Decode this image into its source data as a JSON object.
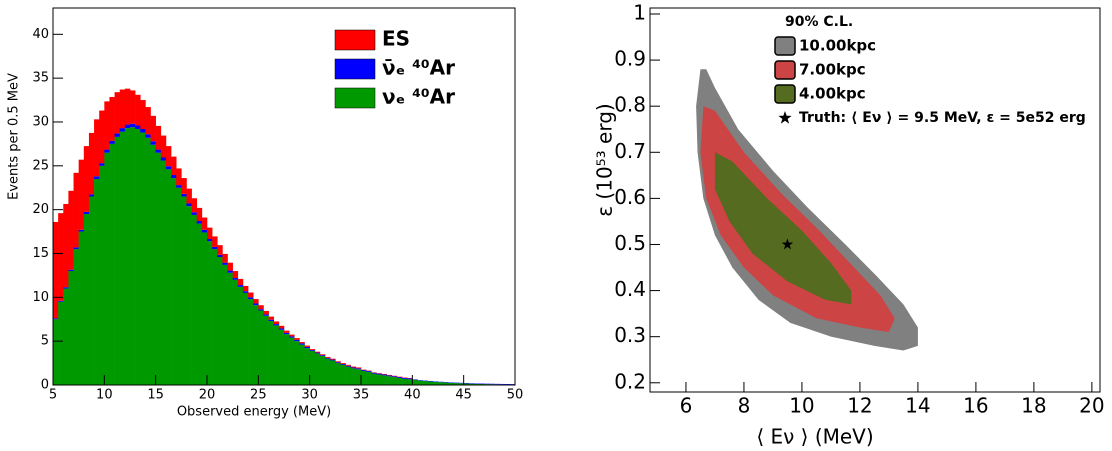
{
  "chart_data": [
    {
      "type": "histogram",
      "xlabel": "Observed energy (MeV)",
      "ylabel": "Events per 0.5 MeV",
      "bins": [
        5,
        5.5,
        6,
        6.5,
        7,
        7.5,
        8,
        8.5,
        9,
        9.5,
        10,
        10.5,
        11,
        11.5,
        12,
        12.5,
        13,
        13.5,
        14,
        14.5,
        15,
        15.5,
        16,
        16.5,
        17,
        17.5,
        18,
        18.5,
        19,
        19.5,
        20,
        20.5,
        21,
        21.5,
        22,
        22.5,
        23,
        23.5,
        24,
        24.5,
        25,
        25.5,
        26,
        26.5,
        27,
        27.5,
        28,
        28.5,
        29,
        29.5,
        30,
        30.5,
        31,
        31.5,
        32,
        32.5,
        33,
        33.5,
        34,
        34.5,
        35,
        35.5,
        36,
        36.5,
        37,
        37.5,
        38,
        38.5,
        39,
        39.5,
        40,
        40.5,
        41,
        41.5,
        42,
        42.5,
        43,
        43.5,
        44,
        44.5,
        45,
        45.5,
        46,
        46.5,
        47,
        47.5,
        48,
        48.5,
        49,
        49.5,
        50
      ],
      "series": [
        {
          "name": "ES",
          "color": "#ff0000",
          "values": [
            11,
            10,
            9.5,
            9,
            8.5,
            8,
            7.5,
            7,
            6.5,
            6,
            5.5,
            5,
            4.7,
            4.4,
            4.1,
            3.8,
            3.5,
            3.3,
            3.1,
            2.9,
            2.7,
            2.5,
            2.3,
            2.1,
            1.9,
            1.8,
            1.7,
            1.6,
            1.5,
            1.4,
            1.3,
            1.2,
            1.1,
            1.0,
            0.9,
            0.8,
            0.7,
            0.6,
            0.55,
            0.5,
            0.45,
            0.4,
            0.35,
            0.3,
            0.3,
            0.25,
            0.2,
            0.2,
            0.15,
            0.15,
            0.1,
            0.1,
            0.1,
            0.1,
            0.1,
            0.1,
            0.1,
            0.1,
            0.1,
            0.1,
            0.05,
            0.05,
            0.05,
            0.05,
            0.05,
            0.05,
            0.05,
            0.05,
            0.05,
            0.05,
            0,
            0,
            0,
            0,
            0,
            0,
            0,
            0,
            0,
            0,
            0,
            0,
            0,
            0,
            0,
            0,
            0,
            0,
            0,
            0
          ]
        },
        {
          "name": "ν̄ₑ ⁴⁰Ar",
          "color": "#0000ff",
          "values": [
            0.1,
            0.1,
            0.15,
            0.15,
            0.2,
            0.2,
            0.25,
            0.25,
            0.3,
            0.3,
            0.35,
            0.35,
            0.4,
            0.4,
            0.4,
            0.4,
            0.4,
            0.4,
            0.4,
            0.4,
            0.35,
            0.35,
            0.35,
            0.35,
            0.3,
            0.3,
            0.3,
            0.3,
            0.3,
            0.3,
            0.25,
            0.25,
            0.25,
            0.25,
            0.25,
            0.2,
            0.2,
            0.2,
            0.2,
            0.2,
            0.15,
            0.15,
            0.15,
            0.15,
            0.15,
            0.15,
            0.15,
            0.15,
            0.15,
            0.15,
            0.1,
            0.1,
            0.1,
            0.1,
            0.1,
            0.1,
            0.1,
            0.1,
            0.1,
            0.1,
            0.1,
            0.1,
            0.1,
            0.1,
            0.1,
            0.1,
            0.1,
            0.1,
            0.1,
            0.1,
            0.05,
            0.05,
            0.05,
            0.05,
            0.05,
            0.05,
            0.05,
            0.05,
            0.05,
            0.05,
            0.05,
            0.05,
            0.05,
            0.05,
            0.05,
            0.05,
            0.05,
            0.05,
            0.05,
            0.05
          ]
        },
        {
          "name": "νₑ ⁴⁰Ar",
          "color": "#009900",
          "values": [
            7.5,
            9.5,
            11,
            13,
            15.5,
            17.5,
            19.5,
            21.5,
            23.5,
            25,
            26.5,
            27.5,
            28.3,
            28.9,
            29.3,
            29.4,
            29.2,
            28.8,
            28.2,
            27.4,
            26.5,
            25.6,
            24.6,
            23.6,
            22.5,
            21.5,
            20.4,
            19.4,
            18.4,
            17.4,
            16.4,
            15.5,
            14.6,
            13.7,
            12.8,
            12.0,
            11.2,
            10.5,
            9.8,
            9.1,
            8.5,
            7.9,
            7.3,
            6.8,
            6.3,
            5.8,
            5.4,
            5.0,
            4.6,
            4.2,
            3.9,
            3.6,
            3.3,
            3.0,
            2.8,
            2.5,
            2.3,
            2.1,
            1.9,
            1.8,
            1.6,
            1.5,
            1.3,
            1.2,
            1.1,
            1.0,
            0.9,
            0.8,
            0.7,
            0.65,
            0.6,
            0.5,
            0.45,
            0.4,
            0.36,
            0.32,
            0.28,
            0.25,
            0.22,
            0.2,
            0.17,
            0.15,
            0.13,
            0.12,
            0.1,
            0.09,
            0.08,
            0.07,
            0.06,
            0.05
          ]
        }
      ],
      "xlim": [
        5,
        50
      ],
      "ylim": [
        0,
        43
      ],
      "xticks": [
        5,
        10,
        15,
        20,
        25,
        30,
        35,
        40,
        45,
        50
      ],
      "yticks": [
        0,
        5,
        10,
        15,
        20,
        25,
        30,
        35,
        40
      ],
      "legend": "top-right"
    },
    {
      "type": "contour",
      "xlabel": "⟨ Eν ⟩ (MeV)",
      "ylabel": "ε (10⁵³ erg)",
      "legend_title": "90% C.L.",
      "series": [
        {
          "name": "10.00kpc",
          "color": "#808080",
          "x": [
            6.5,
            6.35,
            6.4,
            6.6,
            7,
            7.6,
            8.5,
            9.6,
            11,
            12.5,
            13.5,
            14,
            14,
            13.5,
            12.6,
            11.5,
            10.2,
            9,
            7.8,
            7,
            6.7
          ],
          "y": [
            0.88,
            0.8,
            0.7,
            0.6,
            0.52,
            0.45,
            0.38,
            0.33,
            0.3,
            0.28,
            0.27,
            0.28,
            0.32,
            0.37,
            0.43,
            0.5,
            0.58,
            0.66,
            0.75,
            0.84,
            0.88
          ]
        },
        {
          "name": "7.00kpc",
          "color": "#cc4444",
          "x": [
            6.6,
            6.5,
            6.7,
            7.2,
            8,
            9,
            10.5,
            12,
            13,
            13.2,
            12.7,
            11.8,
            10.6,
            9.3,
            8,
            7
          ],
          "y": [
            0.8,
            0.7,
            0.6,
            0.52,
            0.45,
            0.39,
            0.34,
            0.32,
            0.31,
            0.34,
            0.39,
            0.45,
            0.53,
            0.61,
            0.7,
            0.79
          ]
        },
        {
          "name": "4.00kpc",
          "color": "#556b1f",
          "x": [
            7,
            7,
            7.5,
            8.3,
            9.5,
            10.8,
            11.7,
            11.7,
            11,
            10,
            8.8,
            7.6
          ],
          "y": [
            0.7,
            0.62,
            0.55,
            0.48,
            0.42,
            0.38,
            0.37,
            0.4,
            0.46,
            0.53,
            0.6,
            0.68
          ]
        }
      ],
      "marker": {
        "name": "Truth: ⟨ Eν ⟩ = 9.5 MeV, ε = 5e52 erg",
        "x": 9.5,
        "y": 0.5
      },
      "xlim": [
        4.76,
        20.28
      ],
      "ylim": [
        0.18,
        1.013
      ],
      "xticks": [
        6,
        8,
        10,
        12,
        14,
        16,
        18,
        20
      ],
      "yticks": [
        0.2,
        0.3,
        0.4,
        0.5,
        0.6,
        0.7,
        0.8,
        0.9,
        1
      ]
    }
  ]
}
